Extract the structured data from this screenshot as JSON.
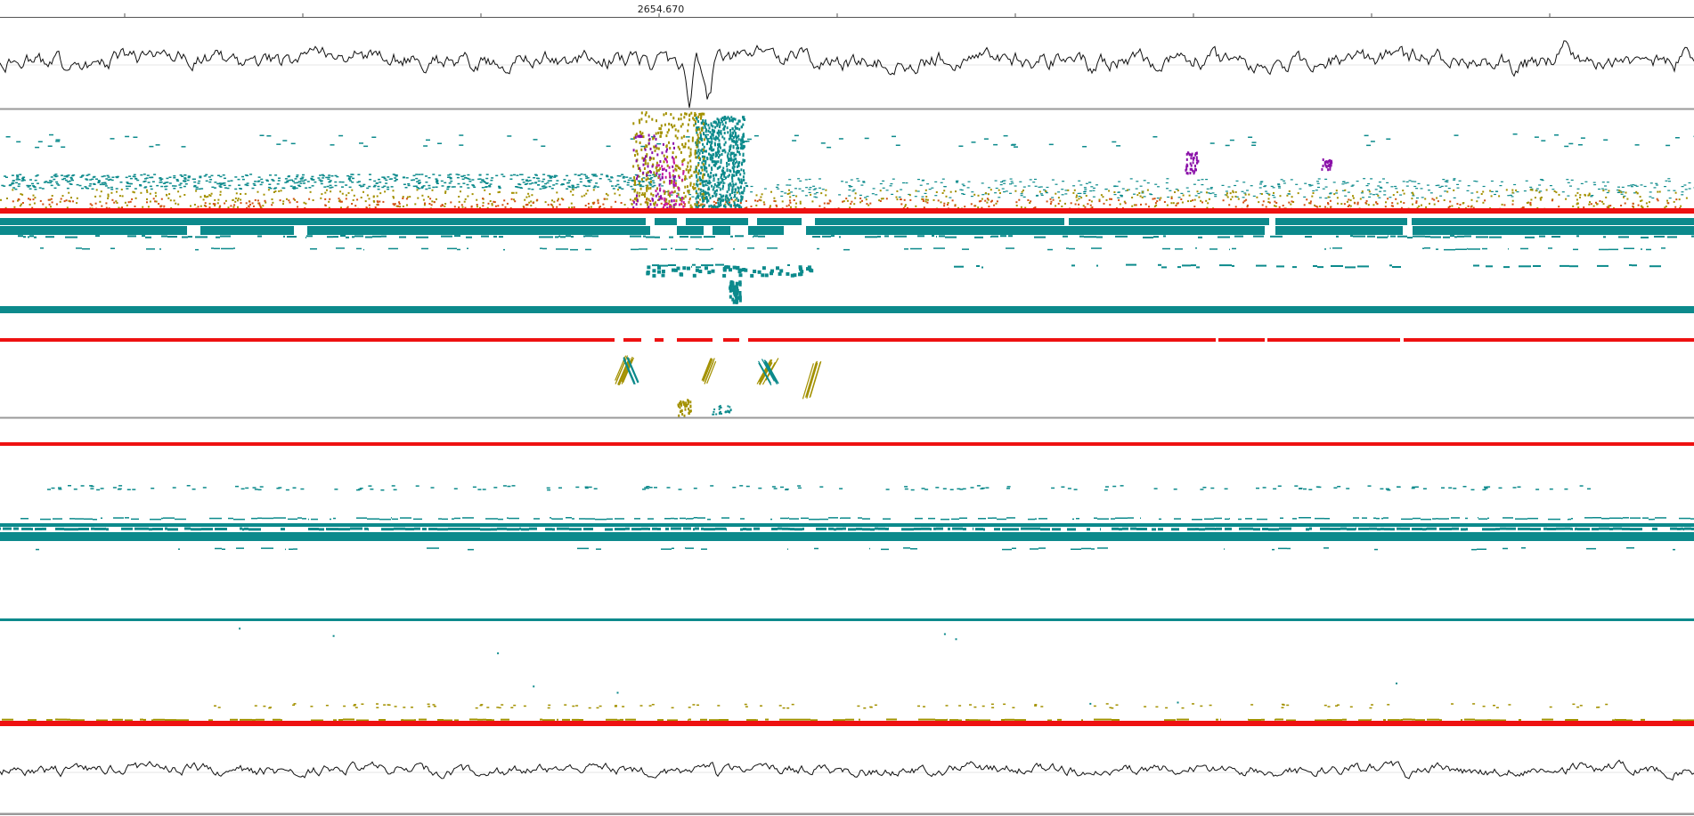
{
  "ruler": {
    "label": "2654.670",
    "tick_count": 9
  },
  "colors": {
    "background": "#ffffff",
    "axis": "#555555",
    "divider": "#999999",
    "signal": "#111111",
    "teal": "#0c8a8c",
    "red": "#ee1111",
    "olive": "#a39100",
    "orange": "#d05010",
    "purple": "#8a10a8",
    "magenta": "#c81ca0"
  },
  "tracks": [
    {
      "name": "gc-signal-top",
      "kind": "signal"
    },
    {
      "name": "alignment-panel-1",
      "kind": "alignments"
    },
    {
      "name": "alignment-panel-2",
      "kind": "alignments"
    },
    {
      "name": "alignment-panel-3",
      "kind": "alignments"
    },
    {
      "name": "alignment-panel-4",
      "kind": "alignments"
    },
    {
      "name": "gc-signal-bottom",
      "kind": "signal"
    }
  ]
}
